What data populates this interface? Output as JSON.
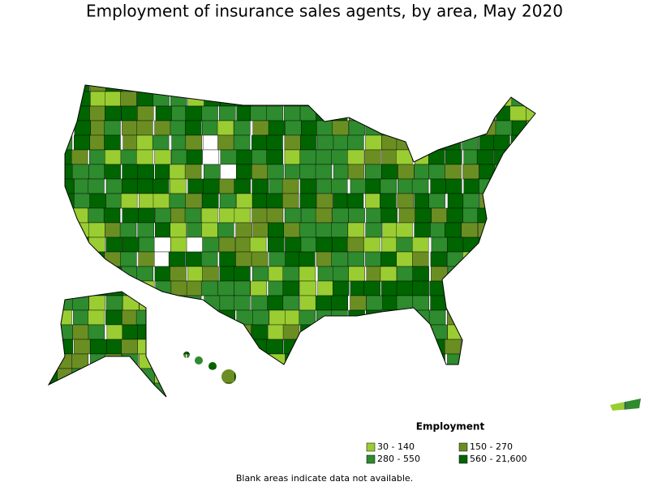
{
  "title": "Employment of insurance sales agents, by area, May 2020",
  "legend": {
    "title": "Employment",
    "items": [
      {
        "label": "30 - 140",
        "color": "#9acd32"
      },
      {
        "label": "150 - 270",
        "color": "#6b8e23"
      },
      {
        "label": "280 - 550",
        "color": "#2e8b2e"
      },
      {
        "label": "560 - 21,600",
        "color": "#006400"
      }
    ]
  },
  "footnote": "Blank areas indicate data not available."
}
